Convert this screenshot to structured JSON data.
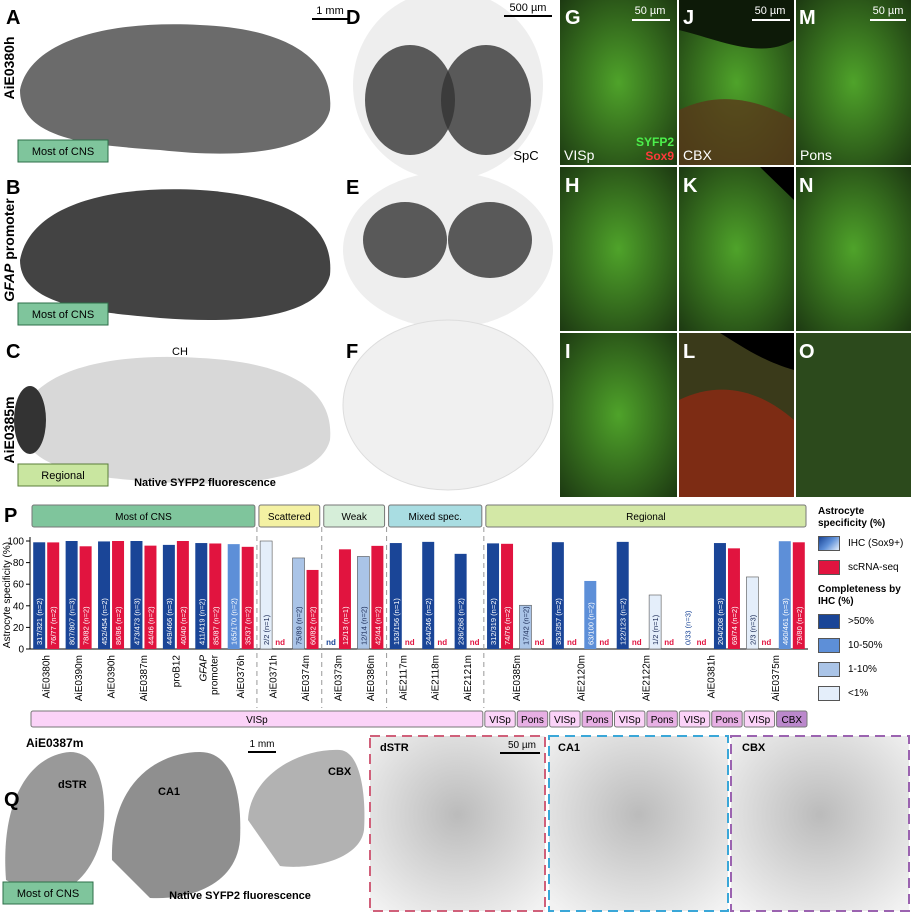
{
  "panel_letters": [
    "A",
    "B",
    "C",
    "D",
    "E",
    "F",
    "G",
    "H",
    "I",
    "J",
    "K",
    "L",
    "M",
    "N",
    "O",
    "P",
    "Q"
  ],
  "top": {
    "row_labels": [
      "AiE0380h",
      "GFAP promoter",
      "AiE0385m"
    ],
    "tags": [
      "Most of CNS",
      "Most of CNS",
      "Regional"
    ],
    "scale_brain": "1 mm",
    "scale_spc": "500 µm",
    "scale_zoom": [
      "50 µm",
      "50 µm",
      "50 µm"
    ],
    "region_ch": "CH",
    "caption": "Native SYFP2 fluorescence",
    "region_spc": "SpC",
    "zoom_regions": [
      "VISp",
      "CBX",
      "Pons"
    ],
    "stain_green": "SYFP2",
    "stain_red": "Sox9"
  },
  "q": {
    "genotype": "AiE0387m",
    "regions": [
      "dSTR",
      "CA1",
      "CBX"
    ],
    "scale": "1 mm",
    "caption": "Native SYFP2 fluorescence",
    "tag": "Most of CNS",
    "zoom_regions": [
      "dSTR",
      "CA1",
      "CBX"
    ],
    "zoom_scale": "50 µm"
  },
  "chart_data": {
    "type": "bar",
    "ylabel": "Astrocyte specificity (%)",
    "ylim": [
      0,
      100
    ],
    "yticks": [
      0,
      20,
      40,
      60,
      80,
      100
    ],
    "categories": [
      "AiE0380h",
      "AiE0390m",
      "AiE0390h",
      "AiE0387m",
      "proB12",
      "GFAP promoter",
      "AiE0376h",
      "AiE0371h",
      "AiE0374m",
      "AiE0373m",
      "AiE0386m",
      "AiE2117m",
      "AiE2118m",
      "AiE2121m",
      "AiE0385m",
      null,
      "AiE2120m",
      null,
      "AiE2122m",
      null,
      "AiE0381h",
      null,
      "AiE0375m",
      null
    ],
    "groups": [
      {
        "name": "Most of CNS",
        "count": 7,
        "color": "#7fc59c"
      },
      {
        "name": "Scattered",
        "count": 2,
        "color": "#f4f1a3"
      },
      {
        "name": "Weak",
        "count": 2,
        "color": "#d6eed9"
      },
      {
        "name": "Mixed spec.",
        "count": 3,
        "color": "#a9dde2"
      },
      {
        "name": "Regional",
        "count": 10,
        "color": "#d3e8a6"
      }
    ],
    "regions": [
      {
        "name": "VISp",
        "count": 14,
        "color": "#fbd3f8"
      },
      {
        "name": "VISp",
        "count": 1,
        "color": "#fbd3f8"
      },
      {
        "name": "Pons",
        "count": 1,
        "color": "#e7afe4"
      },
      {
        "name": "VISp",
        "count": 1,
        "color": "#fbd3f8"
      },
      {
        "name": "Pons",
        "count": 1,
        "color": "#e7afe4"
      },
      {
        "name": "VISp",
        "count": 1,
        "color": "#fbd3f8"
      },
      {
        "name": "Pons",
        "count": 1,
        "color": "#e7afe4"
      },
      {
        "name": "VISp",
        "count": 1,
        "color": "#fbd3f8"
      },
      {
        "name": "Pons",
        "count": 1,
        "color": "#e7afe4"
      },
      {
        "name": "VISp",
        "count": 1,
        "color": "#fbd3f8"
      },
      {
        "name": "CBX",
        "count": 1,
        "color": "#bb88cc"
      }
    ],
    "series": [
      {
        "name": "IHC (Sox9+)",
        "color": "#1a4597",
        "colors": [
          "#1a4597",
          "#1a4597",
          "#1a4597",
          "#1a4597",
          "#1a4597",
          "#1a4597",
          "#5d8fd8",
          "#e4eefa",
          "#aac4e7",
          "#1a4597",
          "#aac4e7",
          "#1a4597",
          "#1a4597",
          "#1a4597",
          "#1a4597",
          "#aac4e7",
          "#1a4597",
          "#5d8fd8",
          "#1a4597",
          "#e4eefa",
          "#1a4597",
          "#1a4597",
          "#e4eefa",
          "#5d8fd8"
        ],
        "values": [
          98.8,
          100,
          99.6,
          100,
          96.4,
          98.1,
          97.1,
          100,
          84.3,
          null,
          85.7,
          98.1,
          99.2,
          88.1,
          97.8,
          40.5,
          98.9,
          63,
          99.2,
          50,
          0,
          98.1,
          66.7,
          99.8
        ],
        "value_labels": [
          "317/321 (n=2)",
          "807/807 (n=3)",
          "452/454 (n=2)",
          "473/473 (n=3)",
          "449/466 (n=3)",
          "411/419 (n=2)",
          "165/170 (n=2)",
          "2/2 (n=1)",
          "75/89 (n=2)",
          "nd",
          "12/14 (n=2)",
          "153/156 (n=1)",
          "244/246 (n=2)",
          "236/268 (n=2)",
          "312/319 (n=2)",
          "17/42 (n=2)",
          "353/357 (n=2)",
          "63/100 (n=2)",
          "122/123 (n=2)",
          "1/2 (n=1)",
          "0/33 (n=3)",
          "204/208 (n=3)",
          "2/3 (n=3)",
          "460/461 (n=3)"
        ]
      },
      {
        "name": "scRNA-seq",
        "color": "#e1143f",
        "values": [
          98.7,
          95.1,
          100,
          95.7,
          100,
          97.7,
          94.6,
          null,
          73.2,
          92.3,
          95.5,
          null,
          null,
          null,
          97.4,
          null,
          null,
          null,
          null,
          null,
          null,
          93.2,
          null,
          98.8
        ],
        "value_labels": [
          "76/77 (n=2)",
          "78/82 (n=2)",
          "86/86 (n=2)",
          "44/46 (n=2)",
          "40/40 (n=2)",
          "85/87 (n=2)",
          "35/37 (n=2)",
          "nd",
          "60/82 (n=2)",
          "12/13 (n=1)",
          "42/44 (n=2)",
          "nd",
          "nd",
          "nd",
          "74/76 (n=2)",
          "nd",
          "nd",
          "nd",
          "nd",
          "nd",
          "nd",
          "69/74 (n=2)",
          "nd",
          "79/80 (n=2)"
        ]
      }
    ],
    "legend": {
      "title": "Astrocyte specificity (%)",
      "completeness_title": "Completeness by IHC (%)",
      "completeness": [
        {
          "label": ">50%",
          "color": "#1a4597"
        },
        {
          "label": "10-50%",
          "color": "#5d8fd8"
        },
        {
          "label": "1-10%",
          "color": "#aac4e7"
        },
        {
          "label": "<1%",
          "color": "#e4eefa"
        }
      ]
    }
  }
}
